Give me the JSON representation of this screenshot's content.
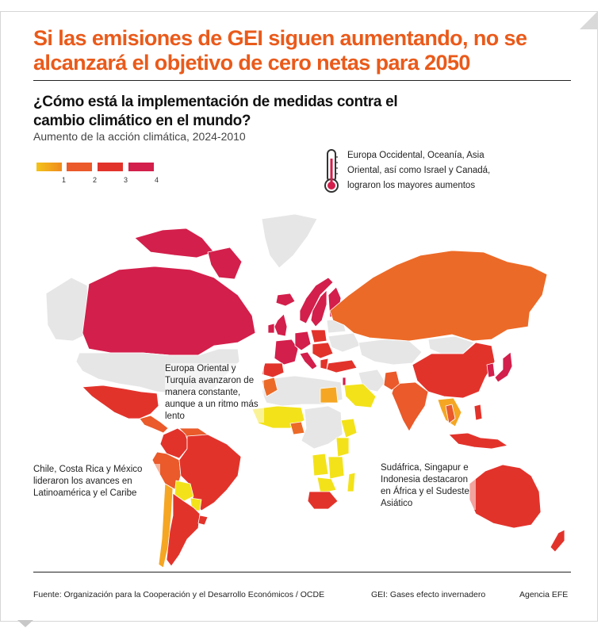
{
  "headline": "Si las emisiones de GEI siguen aumentando, no se alcanzará el objetivo de cero netas para 2050",
  "question": "¿Cómo está la implementación de medidas contra el cambio climático en el mundo?",
  "subtitle": "Aumento de la acción climática, 2024-2010",
  "legend": {
    "items": [
      {
        "label": "1",
        "color": "#f5a623"
      },
      {
        "label": "2",
        "color": "#ea5a2a"
      },
      {
        "label": "3",
        "color": "#e2332b"
      },
      {
        "label": "4",
        "color": "#d31f4b"
      }
    ],
    "no_data_color": "#e6e6e6",
    "low_color": "#f3e21a"
  },
  "callouts": {
    "thermometer": "Europa Occidental, Oceanía, Asia Oriental, así como Israel y Canadá, lograron los mayores aumentos",
    "eastern_europe": "Europa Oriental y Turquía avanzaron de manera constante, aunque a un ritmo más lento",
    "latin_america": "Chile, Costa Rica y México lideraron los avances en Latinoamérica y el Caribe",
    "africa_asia": "Sudáfrica, Singapur e Indonesia destacaron en África y el Sudeste Asiático"
  },
  "footer": {
    "source": "Fuente: Organización para la Cooperación y el Desarrollo Económicos / OCDE",
    "gei": "GEI: Gases efecto invernadero",
    "agency": "Agencia EFE"
  }
}
